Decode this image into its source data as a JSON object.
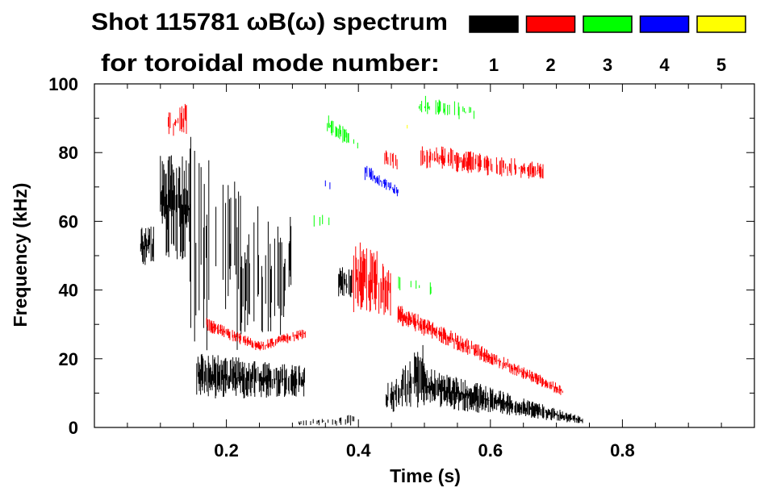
{
  "chart_data": {
    "type": "heatmap",
    "title_line1": "Shot 115781 ωB(ω) spectrum",
    "title_line2": "for toroidal mode number:",
    "xlabel": "Time (s)",
    "ylabel": "Frequency (kHz)",
    "xlim": [
      0,
      1.0
    ],
    "ylim": [
      0,
      100
    ],
    "x_ticks": [
      "0.2",
      "0.4",
      "0.6",
      "0.8"
    ],
    "x_tick_values": [
      0.2,
      0.4,
      0.6,
      0.8
    ],
    "y_ticks": [
      "0",
      "20",
      "40",
      "60",
      "80",
      "100"
    ],
    "y_tick_values": [
      0,
      20,
      40,
      60,
      80,
      100
    ],
    "legend": [
      {
        "label": "1",
        "color": "#000000"
      },
      {
        "label": "2",
        "color": "#ff0000"
      },
      {
        "label": "3",
        "color": "#00ff00"
      },
      {
        "label": "4",
        "color": "#0000ff"
      },
      {
        "label": "5",
        "color": "#ffff00"
      }
    ],
    "features": [
      {
        "mode": 1,
        "t": [
          0.07,
          0.09
        ],
        "f_lo": [
          47,
          47
        ],
        "f_hi": [
          58,
          60
        ],
        "density": 0.9
      },
      {
        "mode": 1,
        "t": [
          0.1,
          0.145
        ],
        "f_lo": [
          50,
          48
        ],
        "f_hi": [
          80,
          79
        ],
        "density": 0.9
      },
      {
        "mode": 1,
        "t": [
          0.145,
          0.29
        ],
        "f_lo": [
          22,
          22
        ],
        "f_hi": [
          85,
          58
        ],
        "density": 0.35
      },
      {
        "mode": 1,
        "t": [
          0.29,
          0.3
        ],
        "f_lo": [
          40,
          40
        ],
        "f_hi": [
          62,
          62
        ],
        "density": 0.6
      },
      {
        "mode": 1,
        "t": [
          0.155,
          0.32
        ],
        "f_lo": [
          8,
          9
        ],
        "f_hi": [
          22,
          18
        ],
        "density": 0.85
      },
      {
        "mode": 1,
        "t": [
          0.31,
          0.4
        ],
        "f_lo": [
          0.5,
          0.5
        ],
        "f_hi": [
          2,
          4
        ],
        "density": 0.3
      },
      {
        "mode": 1,
        "t": [
          0.37,
          0.39
        ],
        "f_lo": [
          38,
          37
        ],
        "f_hi": [
          47,
          46
        ],
        "density": 0.8
      },
      {
        "mode": 1,
        "t": [
          0.44,
          0.5
        ],
        "f_lo": [
          4,
          6
        ],
        "f_hi": [
          12,
          26
        ],
        "density": 0.7
      },
      {
        "mode": 1,
        "t": [
          0.5,
          0.74
        ],
        "f_lo": [
          6,
          1
        ],
        "f_hi": [
          18,
          3
        ],
        "density": 0.9
      },
      {
        "mode": 2,
        "t": [
          0.11,
          0.14
        ],
        "f_lo": [
          83,
          85
        ],
        "f_hi": [
          92,
          95
        ],
        "density": 0.5
      },
      {
        "mode": 2,
        "t": [
          0.17,
          0.25
        ],
        "f_lo": [
          28,
          22
        ],
        "f_hi": [
          32,
          25
        ],
        "density": 0.7
      },
      {
        "mode": 2,
        "t": [
          0.25,
          0.32
        ],
        "f_lo": [
          22,
          26
        ],
        "f_hi": [
          25,
          29
        ],
        "density": 0.7
      },
      {
        "mode": 2,
        "t": [
          0.39,
          0.45
        ],
        "f_lo": [
          32,
          32
        ],
        "f_hi": [
          55,
          50
        ],
        "density": 0.6
      },
      {
        "mode": 2,
        "t": [
          0.46,
          0.71
        ],
        "f_lo": [
          30,
          9
        ],
        "f_hi": [
          36,
          12
        ],
        "density": 0.8
      },
      {
        "mode": 2,
        "t": [
          0.49,
          0.68
        ],
        "f_lo": [
          75,
          72
        ],
        "f_hi": [
          83,
          77
        ],
        "density": 0.5
      },
      {
        "mode": 2,
        "t": [
          0.44,
          0.46
        ],
        "f_lo": [
          76,
          75
        ],
        "f_hi": [
          81,
          80
        ],
        "density": 0.4
      },
      {
        "mode": 3,
        "t": [
          0.35,
          0.4
        ],
        "f_lo": [
          86,
          80
        ],
        "f_hi": [
          92,
          84
        ],
        "density": 0.4
      },
      {
        "mode": 3,
        "t": [
          0.49,
          0.58
        ],
        "f_lo": [
          90,
          89
        ],
        "f_hi": [
          97,
          94
        ],
        "density": 0.25
      },
      {
        "mode": 3,
        "t": [
          0.33,
          0.37
        ],
        "f_lo": [
          58,
          59
        ],
        "f_hi": [
          62,
          62
        ],
        "density": 0.15
      },
      {
        "mode": 3,
        "t": [
          0.46,
          0.52
        ],
        "f_lo": [
          40,
          38
        ],
        "f_hi": [
          44,
          42
        ],
        "density": 0.15
      },
      {
        "mode": 4,
        "t": [
          0.41,
          0.46
        ],
        "f_lo": [
          72,
          67
        ],
        "f_hi": [
          77,
          70
        ],
        "density": 0.6
      },
      {
        "mode": 4,
        "t": [
          0.35,
          0.36
        ],
        "f_lo": [
          69,
          69
        ],
        "f_hi": [
          72,
          72
        ],
        "density": 0.3
      },
      {
        "mode": 5,
        "t": [
          0.47,
          0.48
        ],
        "f_lo": [
          87,
          87
        ],
        "f_hi": [
          89,
          89
        ],
        "density": 0.3
      }
    ]
  }
}
